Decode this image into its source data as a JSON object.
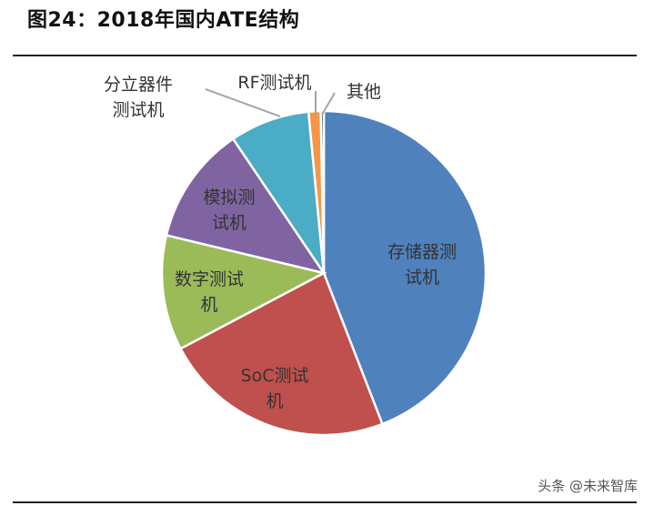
{
  "figure_label": "图24：",
  "title": "2018年国内ATE结构",
  "watermark": "头条 @未来智库",
  "chart_data": {
    "type": "pie",
    "start_angle_deg": 0,
    "direction": "clockwise",
    "slices": [
      {
        "name": "存储器测试机",
        "lines": [
          "存储器测",
          "试机"
        ],
        "value": 43.8,
        "color": "#4F81BD",
        "label_color": "#333333"
      },
      {
        "name": "SoC测试机",
        "lines": [
          "SoC测试",
          "机"
        ],
        "value": 23.0,
        "color": "#C0504D",
        "label_color": "#333333"
      },
      {
        "name": "数字测试机",
        "lines": [
          "数字测试",
          "机"
        ],
        "value": 11.4,
        "color": "#9BBB59",
        "label_color": "#333333"
      },
      {
        "name": "模拟测试机",
        "lines": [
          "模拟测",
          "试机"
        ],
        "value": 11.7,
        "color": "#8064A2",
        "label_color": "#333333"
      },
      {
        "name": "分立器件测试机",
        "lines": [
          "分立器件",
          "测试机"
        ],
        "value": 7.9,
        "color": "#4BACC6",
        "label_color": "#333333",
        "outside": true
      },
      {
        "name": "RF测试机",
        "lines": [
          "RF测试机"
        ],
        "value": 1.2,
        "color": "#F79646",
        "label_color": "#333333",
        "outside": true
      },
      {
        "name": "其他",
        "lines": [
          "其他"
        ],
        "value": 0.3,
        "color": "#2C4D75",
        "label_color": "#333333",
        "outside": true
      }
    ]
  }
}
